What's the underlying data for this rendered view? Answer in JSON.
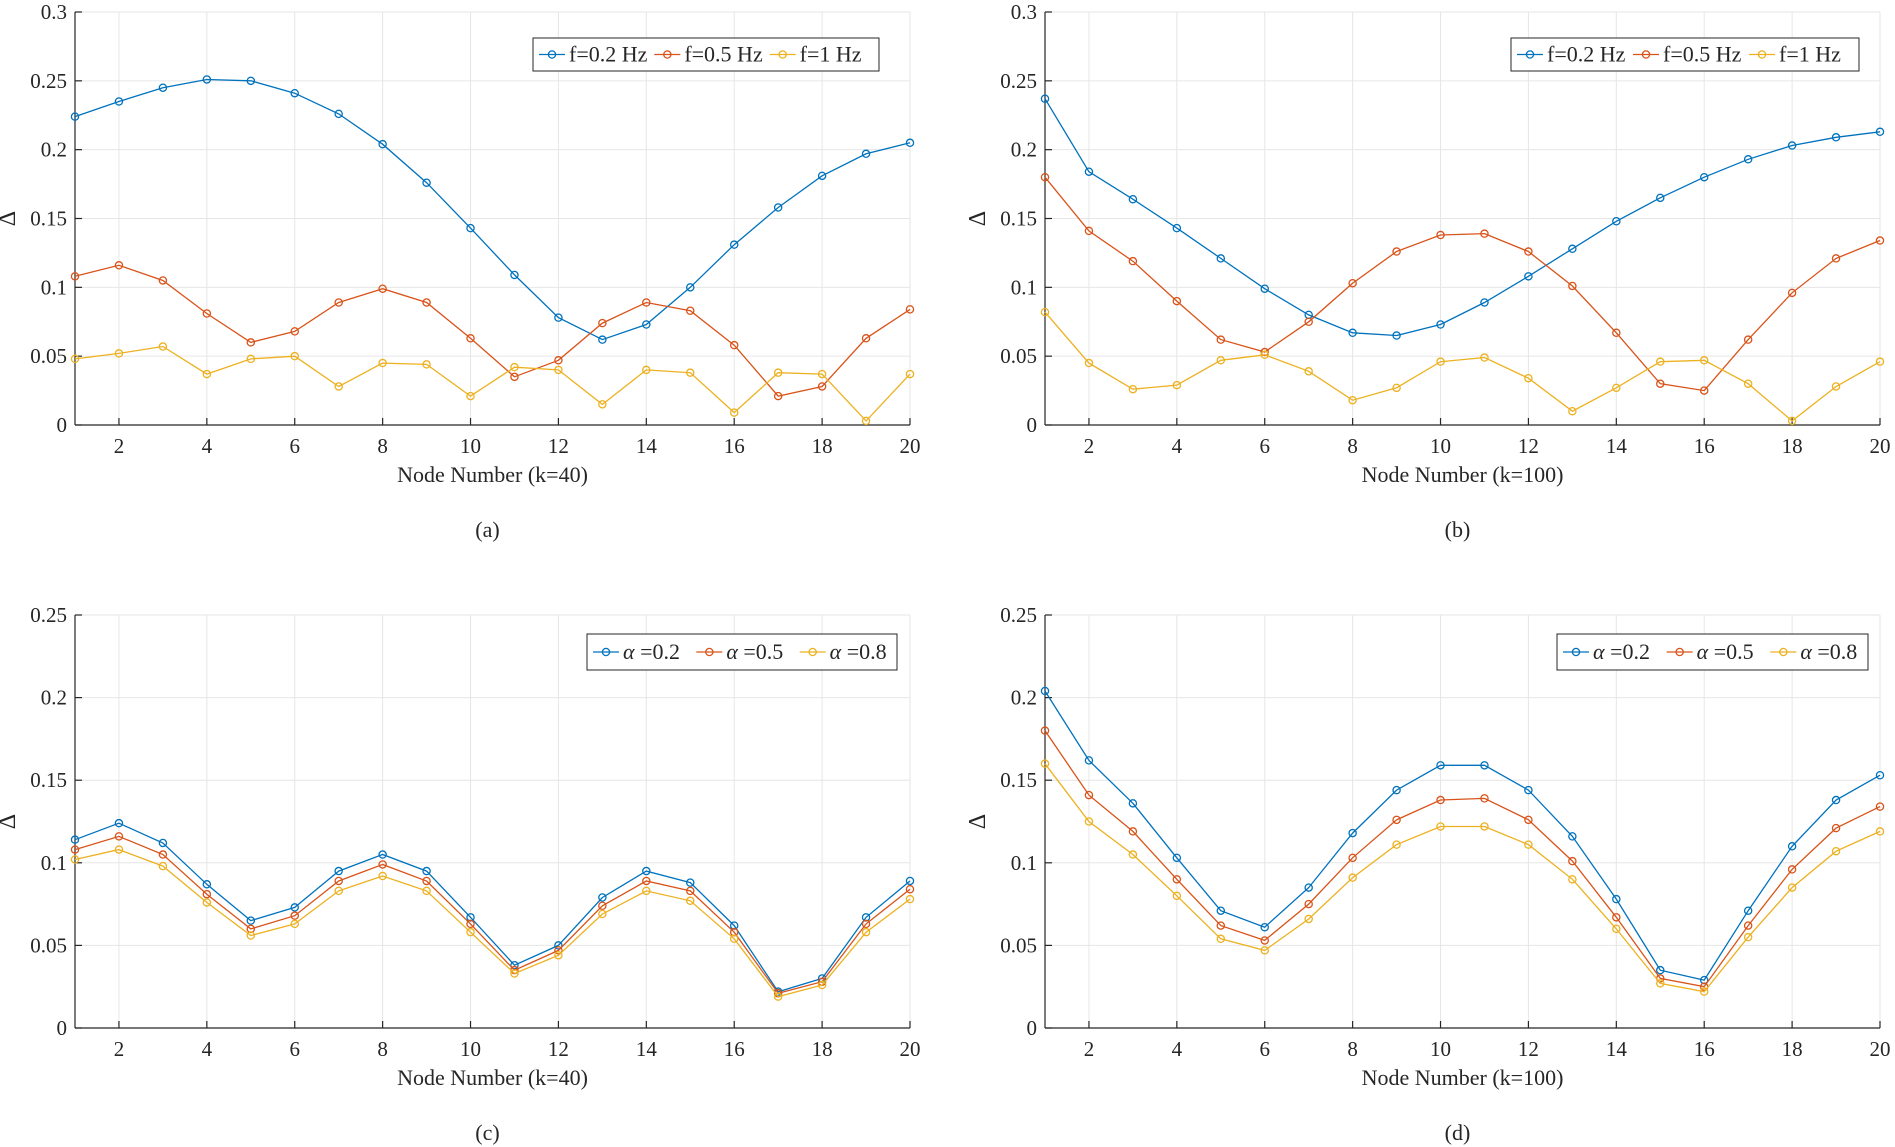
{
  "chart_data": [
    {
      "panel": "a",
      "type": "line",
      "caption": "(a)",
      "xlabel": "Node Number (k=40)",
      "ylabel": "Δ",
      "xlim": [
        1,
        20
      ],
      "ylim": [
        0,
        0.3
      ],
      "xticks": [
        2,
        4,
        6,
        8,
        10,
        12,
        14,
        16,
        18,
        20
      ],
      "yticks": [
        0,
        0.05,
        0.1,
        0.15,
        0.2,
        0.25,
        0.3
      ],
      "ytick_labels": [
        "0",
        "0.05",
        "0.1",
        "0.15",
        "0.2",
        "0.25",
        "0.3"
      ],
      "grid": true,
      "legend_position": "top-right",
      "x": [
        1,
        2,
        3,
        4,
        5,
        6,
        7,
        8,
        9,
        10,
        11,
        12,
        13,
        14,
        15,
        16,
        17,
        18,
        19,
        20
      ],
      "series": [
        {
          "name": "f=0.2 Hz",
          "color": "#0072BD",
          "values": [
            0.224,
            0.235,
            0.245,
            0.251,
            0.25,
            0.241,
            0.226,
            0.204,
            0.176,
            0.143,
            0.109,
            0.078,
            0.062,
            0.073,
            0.1,
            0.131,
            0.158,
            0.181,
            0.197,
            0.205
          ]
        },
        {
          "name": "f=0.5 Hz",
          "color": "#D95319",
          "values": [
            0.108,
            0.116,
            0.105,
            0.081,
            0.06,
            0.068,
            0.089,
            0.099,
            0.089,
            0.063,
            0.035,
            0.047,
            0.074,
            0.089,
            0.083,
            0.058,
            0.021,
            0.028,
            0.063,
            0.084
          ]
        },
        {
          "name": "f=1 Hz",
          "color": "#EDB120",
          "values": [
            0.048,
            0.052,
            0.057,
            0.037,
            0.048,
            0.05,
            0.028,
            0.045,
            0.044,
            0.021,
            0.042,
            0.04,
            0.015,
            0.04,
            0.038,
            0.009,
            0.038,
            0.037,
            0.003,
            0.037
          ]
        }
      ]
    },
    {
      "panel": "b",
      "type": "line",
      "caption": "(b)",
      "xlabel": "Node Number (k=100)",
      "ylabel": "Δ",
      "xlim": [
        1,
        20
      ],
      "ylim": [
        0,
        0.3
      ],
      "xticks": [
        2,
        4,
        6,
        8,
        10,
        12,
        14,
        16,
        18,
        20
      ],
      "yticks": [
        0,
        0.05,
        0.1,
        0.15,
        0.2,
        0.25,
        0.3
      ],
      "ytick_labels": [
        "0",
        "0.05",
        "0.1",
        "0.15",
        "0.2",
        "0.25",
        "0.3"
      ],
      "grid": true,
      "legend_position": "top-right",
      "x": [
        1,
        2,
        3,
        4,
        5,
        6,
        7,
        8,
        9,
        10,
        11,
        12,
        13,
        14,
        15,
        16,
        17,
        18,
        19,
        20
      ],
      "series": [
        {
          "name": "f=0.2 Hz",
          "color": "#0072BD",
          "values": [
            0.237,
            0.184,
            0.164,
            0.143,
            0.121,
            0.099,
            0.08,
            0.067,
            0.065,
            0.073,
            0.089,
            0.108,
            0.128,
            0.148,
            0.165,
            0.18,
            0.193,
            0.203,
            0.209,
            0.213
          ]
        },
        {
          "name": "f=0.5 Hz",
          "color": "#D95319",
          "values": [
            0.18,
            0.141,
            0.119,
            0.09,
            0.062,
            0.053,
            0.075,
            0.103,
            0.126,
            0.138,
            0.139,
            0.126,
            0.101,
            0.067,
            0.03,
            0.025,
            0.062,
            0.096,
            0.121,
            0.134
          ]
        },
        {
          "name": "f=1 Hz",
          "color": "#EDB120",
          "values": [
            0.082,
            0.045,
            0.026,
            0.029,
            0.047,
            0.051,
            0.039,
            0.018,
            0.027,
            0.046,
            0.049,
            0.034,
            0.01,
            0.027,
            0.046,
            0.047,
            0.03,
            0.003,
            0.028,
            0.046
          ]
        }
      ]
    },
    {
      "panel": "c",
      "type": "line",
      "caption": "(c)",
      "xlabel": "Node Number (k=40)",
      "ylabel": "Δ",
      "xlim": [
        1,
        20
      ],
      "ylim": [
        0,
        0.25
      ],
      "xticks": [
        2,
        4,
        6,
        8,
        10,
        12,
        14,
        16,
        18,
        20
      ],
      "yticks": [
        0,
        0.05,
        0.1,
        0.15,
        0.2,
        0.25
      ],
      "ytick_labels": [
        "0",
        "0.05",
        "0.1",
        "0.15",
        "0.2",
        "0.25"
      ],
      "grid": true,
      "legend_position": "top-right",
      "x": [
        1,
        2,
        3,
        4,
        5,
        6,
        7,
        8,
        9,
        10,
        11,
        12,
        13,
        14,
        15,
        16,
        17,
        18,
        19,
        20
      ],
      "series": [
        {
          "symbol": "α",
          "value_label": " =0.2",
          "color": "#0072BD",
          "values": [
            0.114,
            0.124,
            0.112,
            0.087,
            0.065,
            0.073,
            0.095,
            0.105,
            0.095,
            0.067,
            0.038,
            0.05,
            0.079,
            0.095,
            0.088,
            0.062,
            0.022,
            0.03,
            0.067,
            0.089
          ]
        },
        {
          "symbol": "α",
          "value_label": " =0.5",
          "color": "#D95319",
          "values": [
            0.108,
            0.116,
            0.105,
            0.081,
            0.06,
            0.068,
            0.089,
            0.099,
            0.089,
            0.063,
            0.035,
            0.047,
            0.074,
            0.089,
            0.083,
            0.058,
            0.021,
            0.028,
            0.063,
            0.084
          ]
        },
        {
          "symbol": "α",
          "value_label": " =0.8",
          "color": "#EDB120",
          "values": [
            0.102,
            0.108,
            0.098,
            0.076,
            0.056,
            0.063,
            0.083,
            0.092,
            0.083,
            0.058,
            0.033,
            0.044,
            0.069,
            0.083,
            0.077,
            0.054,
            0.019,
            0.026,
            0.058,
            0.078
          ]
        }
      ]
    },
    {
      "panel": "d",
      "type": "line",
      "caption": "(d)",
      "xlabel": "Node Number (k=100)",
      "ylabel": "Δ",
      "xlim": [
        1,
        20
      ],
      "ylim": [
        0,
        0.25
      ],
      "xticks": [
        2,
        4,
        6,
        8,
        10,
        12,
        14,
        16,
        18,
        20
      ],
      "yticks": [
        0,
        0.05,
        0.1,
        0.15,
        0.2,
        0.25
      ],
      "ytick_labels": [
        "0",
        "0.05",
        "0.1",
        "0.15",
        "0.2",
        "0.25"
      ],
      "grid": true,
      "legend_position": "top-right",
      "x": [
        1,
        2,
        3,
        4,
        5,
        6,
        7,
        8,
        9,
        10,
        11,
        12,
        13,
        14,
        15,
        16,
        17,
        18,
        19,
        20
      ],
      "series": [
        {
          "symbol": "α",
          "value_label": " =0.2",
          "color": "#0072BD",
          "values": [
            0.204,
            0.162,
            0.136,
            0.103,
            0.071,
            0.061,
            0.085,
            0.118,
            0.144,
            0.159,
            0.159,
            0.144,
            0.116,
            0.078,
            0.035,
            0.029,
            0.071,
            0.11,
            0.138,
            0.153
          ]
        },
        {
          "symbol": "α",
          "value_label": " =0.5",
          "color": "#D95319",
          "values": [
            0.18,
            0.141,
            0.119,
            0.09,
            0.062,
            0.053,
            0.075,
            0.103,
            0.126,
            0.138,
            0.139,
            0.126,
            0.101,
            0.067,
            0.03,
            0.025,
            0.062,
            0.096,
            0.121,
            0.134
          ]
        },
        {
          "symbol": "α",
          "value_label": " =0.8",
          "color": "#EDB120",
          "values": [
            0.16,
            0.125,
            0.105,
            0.08,
            0.054,
            0.047,
            0.066,
            0.091,
            0.111,
            0.122,
            0.122,
            0.111,
            0.09,
            0.06,
            0.027,
            0.022,
            0.055,
            0.085,
            0.107,
            0.119
          ]
        }
      ]
    }
  ]
}
